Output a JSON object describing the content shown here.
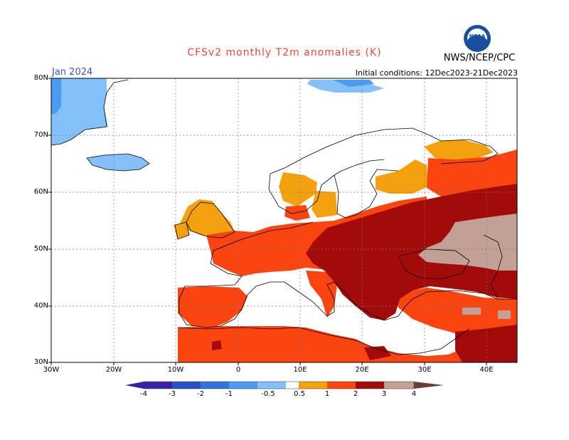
{
  "title": "CFSv2 monthly T2m anomalies (K)",
  "month": "Jan 2024",
  "initial_conditions": "Initial conditions: 12Dec2023-21Dec2023",
  "agency": "NWS/NCEP/CPC",
  "logo_text": "NOAA",
  "axis": {
    "lat_labels": [
      "80N",
      "70N",
      "60N",
      "50N",
      "40N",
      "30N"
    ],
    "lon_labels": [
      "30W",
      "20W",
      "10W",
      "0",
      "10E",
      "20E",
      "30E",
      "40E"
    ]
  },
  "colorbar": {
    "labels": [
      "-4",
      "-3",
      "-2",
      "-1",
      "-0.5",
      "0.5",
      "1",
      "2",
      "3",
      "4"
    ],
    "colors": [
      "#3a1fa8",
      "#2a52c8",
      "#2f74dd",
      "#4a9cf0",
      "#84c1fb",
      "#ffffff",
      "#f3a10d",
      "#fa4510",
      "#a30a0a",
      "#c2a096"
    ],
    "neutral": "#ffffff"
  }
}
